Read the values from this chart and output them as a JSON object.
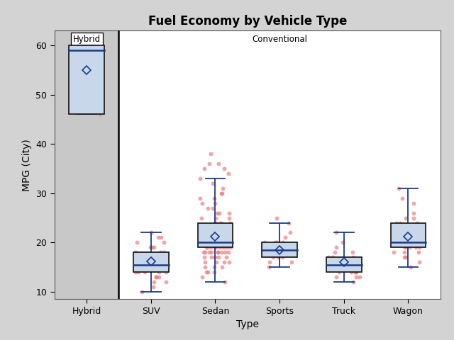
{
  "title": "Fuel Economy by Vehicle Type",
  "xlabel": "Type",
  "ylabel": "MPG (City)",
  "categories": [
    "Hybrid",
    "SUV",
    "Sedan",
    "Sports",
    "Truck",
    "Wagon"
  ],
  "hybrid_label": "Hybrid",
  "conventional_label": "Conventional",
  "ylim": [
    8.5,
    63
  ],
  "yticks": [
    10,
    20,
    30,
    40,
    50,
    60
  ],
  "box_facecolor": "#c8d8ea",
  "box_edgecolor": "#111111",
  "whisker_color": "#1a3a8a",
  "median_color": "#1a3a8a",
  "mean_color": "#1a3a8a",
  "jitter_color": "#e87878",
  "jitter_alpha": 0.65,
  "jitter_size": 18,
  "fig_bg": "#d3d3d3",
  "hybrid_bg": "#c8c8c8",
  "conv_bg": "#ffffff",
  "box_width": 0.55,
  "boxes": {
    "Hybrid": {
      "q1": 46.0,
      "median": 59.0,
      "q3": 60.0,
      "mean": 55.0,
      "whislo": 46.0,
      "whishi": 60.0
    },
    "SUV": {
      "q1": 14.0,
      "median": 15.5,
      "q3": 18.0,
      "mean": 16.2,
      "whislo": 10.0,
      "whishi": 22.0
    },
    "Sedan": {
      "q1": 19.0,
      "median": 20.0,
      "q3": 24.0,
      "mean": 21.2,
      "whislo": 12.0,
      "whishi": 33.0
    },
    "Sports": {
      "q1": 17.0,
      "median": 18.5,
      "q3": 20.0,
      "mean": 18.5,
      "whislo": 15.0,
      "whishi": 24.0
    },
    "Truck": {
      "q1": 14.0,
      "median": 15.5,
      "q3": 17.0,
      "mean": 16.0,
      "whislo": 12.0,
      "whishi": 22.0
    },
    "Wagon": {
      "q1": 19.0,
      "median": 20.0,
      "q3": 24.0,
      "mean": 21.2,
      "whislo": 15.0,
      "whishi": 31.0
    }
  },
  "jitter_data": {
    "Hybrid": [
      46,
      59,
      60
    ],
    "SUV": [
      10,
      11,
      12,
      12,
      13,
      13,
      13,
      14,
      14,
      14,
      14,
      14,
      15,
      15,
      15,
      15,
      15,
      15,
      16,
      16,
      16,
      16,
      16,
      16,
      17,
      17,
      17,
      17,
      18,
      18,
      18,
      19,
      19,
      19,
      20,
      20,
      21,
      21,
      22
    ],
    "Sedan": [
      12,
      13,
      14,
      14,
      14,
      15,
      15,
      15,
      16,
      16,
      16,
      16,
      17,
      17,
      17,
      17,
      17,
      18,
      18,
      18,
      18,
      18,
      18,
      18,
      18,
      18,
      19,
      19,
      19,
      19,
      19,
      19,
      19,
      19,
      19,
      19,
      20,
      20,
      20,
      20,
      20,
      20,
      20,
      20,
      20,
      20,
      20,
      20,
      20,
      20,
      20,
      20,
      21,
      21,
      21,
      21,
      21,
      21,
      21,
      21,
      21,
      22,
      22,
      22,
      22,
      22,
      22,
      22,
      22,
      23,
      23,
      23,
      23,
      24,
      24,
      24,
      24,
      24,
      25,
      25,
      25,
      26,
      26,
      26,
      27,
      27,
      28,
      28,
      29,
      29,
      30,
      30,
      31,
      32,
      33,
      34,
      35,
      35,
      36,
      36,
      38
    ],
    "Sports": [
      15,
      16,
      16,
      17,
      17,
      17,
      18,
      18,
      18,
      18,
      18,
      18,
      19,
      19,
      19,
      19,
      19,
      19,
      20,
      20,
      20,
      20,
      21,
      22,
      24,
      25
    ],
    "Truck": [
      12,
      13,
      13,
      13,
      14,
      14,
      14,
      14,
      14,
      15,
      15,
      15,
      15,
      15,
      15,
      15,
      16,
      16,
      16,
      16,
      16,
      16,
      17,
      17,
      17,
      18,
      18,
      19,
      20,
      22
    ],
    "Wagon": [
      15,
      16,
      17,
      17,
      18,
      18,
      18,
      19,
      19,
      19,
      19,
      19,
      20,
      20,
      20,
      20,
      20,
      21,
      21,
      21,
      22,
      22,
      22,
      23,
      24,
      24,
      24,
      25,
      25,
      26,
      28,
      29,
      31
    ]
  }
}
